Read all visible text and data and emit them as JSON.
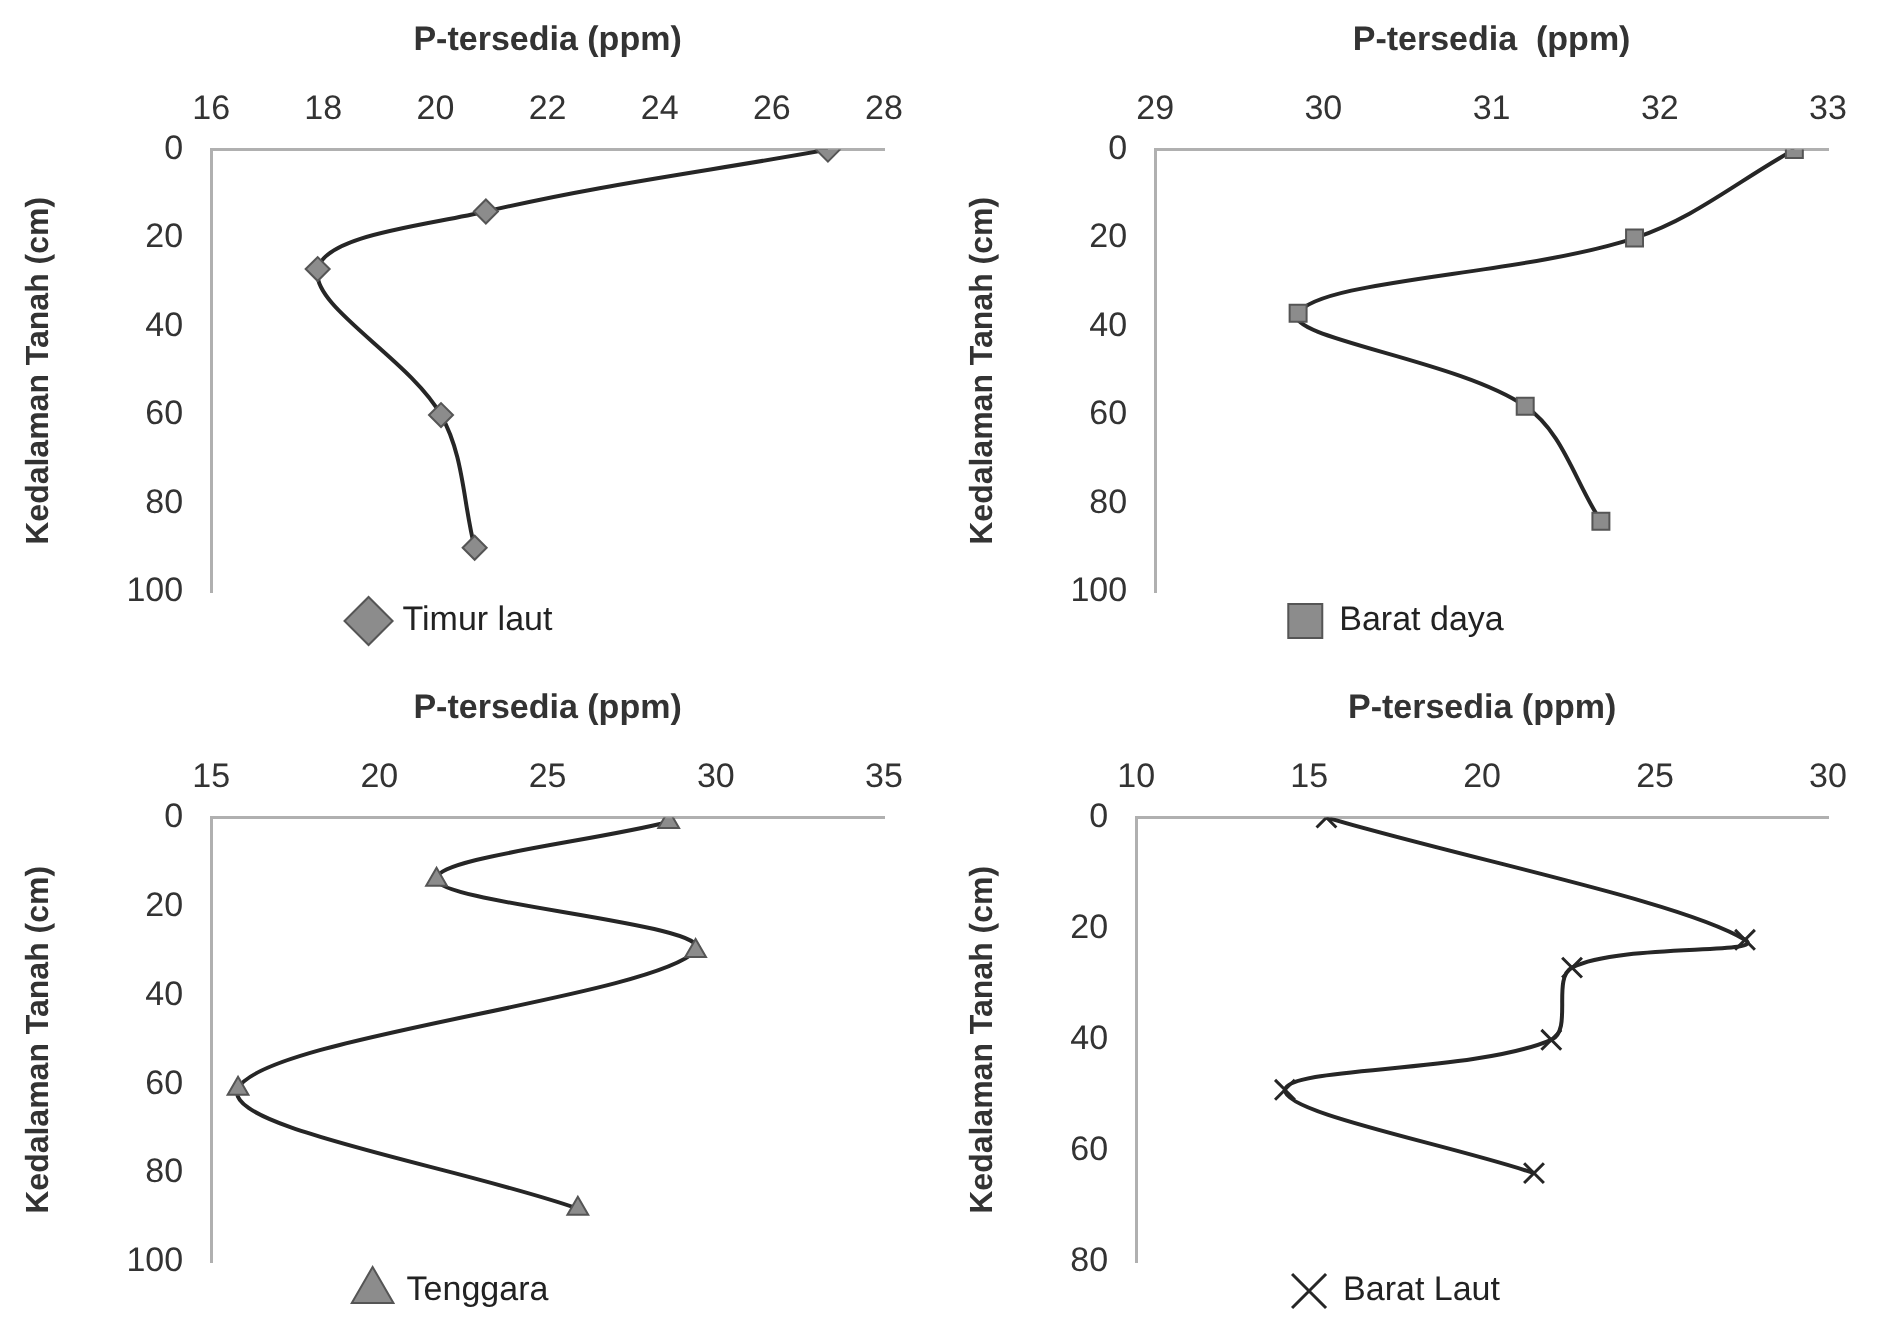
{
  "chart_data": [
    {
      "type": "line",
      "xlabel": "P-tersedia (ppm)",
      "ylabel": "Kedalaman Tanah (cm)",
      "xlim": [
        16,
        28
      ],
      "xticks": [
        16,
        18,
        20,
        22,
        24,
        26,
        28
      ],
      "ylim": [
        100,
        0
      ],
      "yticks": [
        0,
        20,
        40,
        60,
        80,
        100
      ],
      "grid": false,
      "legend": "bottom",
      "marker": "diamond",
      "line_style": "solid",
      "series": [
        {
          "name": "Timur laut",
          "color": "#262626",
          "x": [
            27.0,
            20.9,
            17.9,
            20.1,
            20.7
          ],
          "values": [
            0,
            14,
            27,
            60,
            90
          ]
        }
      ]
    },
    {
      "type": "line",
      "xlabel": "P-tersedia  (ppm)",
      "ylabel": "Kedalaman Tanah (cm)",
      "xlim": [
        29,
        33
      ],
      "xticks": [
        29,
        30,
        31,
        32,
        33
      ],
      "ylim": [
        100,
        0
      ],
      "yticks": [
        0,
        20,
        40,
        60,
        80,
        100
      ],
      "grid": false,
      "legend": "bottom",
      "marker": "square",
      "line_style": "solid",
      "series": [
        {
          "name": "Barat daya",
          "color": "#262626",
          "x": [
            32.8,
            31.85,
            29.85,
            31.2,
            31.65
          ],
          "values": [
            0,
            20,
            37,
            58,
            84
          ]
        }
      ]
    },
    {
      "type": "line",
      "xlabel": "P-tersedia (ppm)",
      "ylabel": "Kedalaman Tanah (cm)",
      "xlim": [
        15,
        35
      ],
      "xticks": [
        15,
        20,
        25,
        30,
        35
      ],
      "ylim": [
        100,
        0
      ],
      "yticks": [
        0,
        20,
        40,
        60,
        80,
        100
      ],
      "grid": false,
      "legend": "bottom",
      "marker": "triangle",
      "line_style": "solid",
      "series": [
        {
          "name": "Tenggara",
          "color": "#262626",
          "x": [
            28.6,
            21.7,
            29.4,
            15.8,
            25.9
          ],
          "values": [
            1,
            14,
            30,
            61,
            88
          ]
        }
      ]
    },
    {
      "type": "line",
      "xlabel": "P-tersedia (ppm)",
      "ylabel": "Kedalaman Tanah (cm)",
      "xlim": [
        10,
        30
      ],
      "xticks": [
        10,
        15,
        20,
        25,
        30
      ],
      "ylim": [
        80,
        0
      ],
      "yticks": [
        0,
        20,
        40,
        60,
        80
      ],
      "grid": false,
      "legend": "bottom",
      "marker": "cross",
      "line_style": "solid",
      "series": [
        {
          "name": "Barat Laut",
          "color": "#262626",
          "x": [
            15.5,
            27.6,
            22.6,
            22.0,
            14.3,
            21.5
          ],
          "values": [
            0,
            22,
            27,
            40,
            49,
            64
          ]
        }
      ]
    }
  ]
}
